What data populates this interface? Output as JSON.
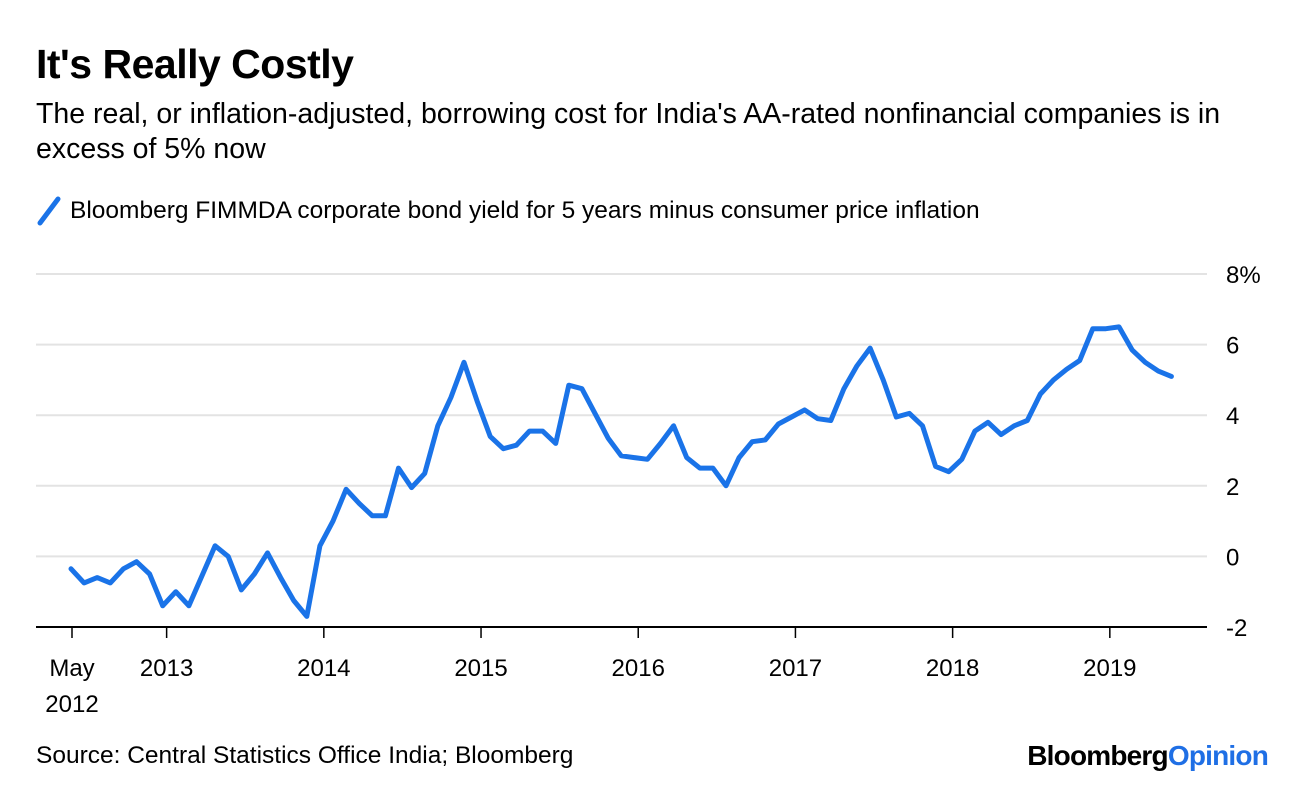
{
  "header": {
    "title": "It's Really Costly",
    "subtitle": "The real, or inflation-adjusted, borrowing cost for India's AA-rated nonfinancial companies is in excess of 5% now"
  },
  "legend": {
    "items": [
      {
        "label": "Bloomberg FIMMDA corporate bond yield for 5 years minus consumer price inflation",
        "color": "#1a73e8"
      }
    ]
  },
  "footer": {
    "source": "Source: Central Statistics Office India; Bloomberg",
    "brand_part1": "Bloomberg",
    "brand_part2": "Opinion"
  },
  "chart_data": {
    "type": "line",
    "title": "It's Really Costly",
    "subtitle": "The real, or inflation-adjusted, borrowing cost for India's AA-rated nonfinancial companies is in excess of 5% now",
    "xlabel": "",
    "ylabel": "",
    "x_start": "2012-05",
    "x_frequency": "monthly",
    "x_ticks": [
      {
        "label": "May 2012",
        "month_index": 0
      },
      {
        "label": "2013",
        "month_index": 7.3
      },
      {
        "label": "2014",
        "month_index": 19.3
      },
      {
        "label": "2015",
        "month_index": 31.3
      },
      {
        "label": "2016",
        "month_index": 43.3
      },
      {
        "label": "2017",
        "month_index": 55.3
      },
      {
        "label": "2018",
        "month_index": 67.3
      },
      {
        "label": "2019",
        "month_index": 79.3
      }
    ],
    "y_ticks": [
      {
        "value": 8,
        "label": "8%"
      },
      {
        "value": 6,
        "label": "6"
      },
      {
        "value": 4,
        "label": "4"
      },
      {
        "value": 2,
        "label": "2"
      },
      {
        "value": 0,
        "label": "0"
      },
      {
        "value": -2,
        "label": "-2"
      }
    ],
    "ylim": [
      -2,
      8
    ],
    "grid": true,
    "y_axis_position": "right",
    "legend_position": "top-left",
    "series": [
      {
        "name": "Bloomberg FIMMDA corporate bond yield for 5 years minus consumer price inflation",
        "color": "#1a73e8",
        "values": [
          -0.35,
          -0.75,
          -0.6,
          -0.75,
          -0.35,
          -0.15,
          -0.5,
          -1.4,
          -1.0,
          -1.4,
          -0.55,
          0.3,
          0.0,
          -0.95,
          -0.5,
          0.1,
          -0.6,
          -1.25,
          -1.7,
          0.3,
          1.0,
          1.9,
          1.5,
          1.15,
          1.15,
          2.5,
          1.95,
          2.35,
          3.7,
          4.5,
          5.5,
          4.4,
          3.4,
          3.05,
          3.15,
          3.55,
          3.55,
          3.2,
          4.85,
          4.75,
          4.05,
          3.35,
          2.85,
          2.8,
          2.75,
          3.2,
          3.7,
          2.8,
          2.5,
          2.5,
          2.0,
          2.8,
          3.25,
          3.3,
          3.75,
          3.95,
          4.15,
          3.9,
          3.85,
          4.75,
          5.4,
          5.9,
          5.0,
          3.95,
          4.05,
          3.7,
          2.55,
          2.4,
          2.75,
          3.55,
          3.8,
          3.45,
          3.7,
          3.85,
          4.6,
          5.0,
          5.3,
          5.55,
          6.45,
          6.45,
          6.5,
          5.85,
          5.5,
          5.25,
          5.1
        ]
      }
    ]
  }
}
